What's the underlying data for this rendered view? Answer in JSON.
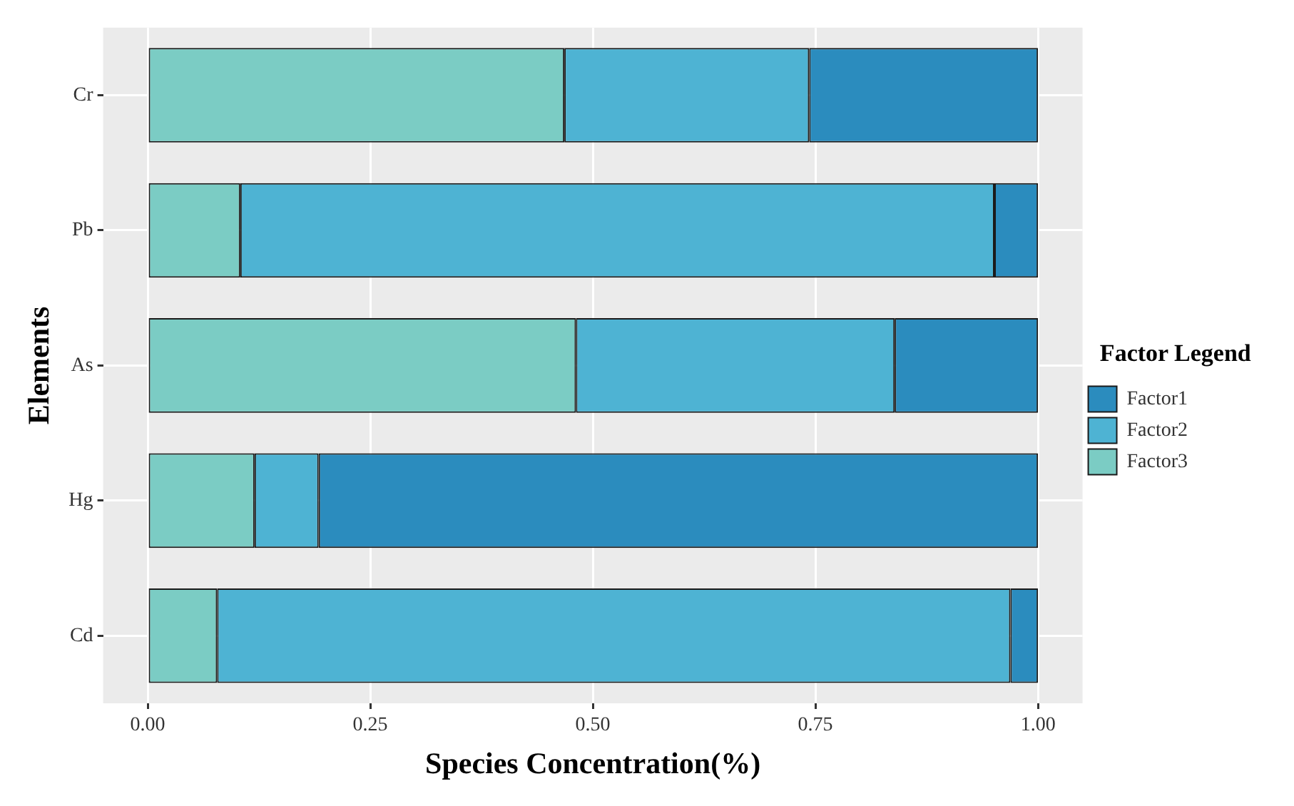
{
  "chart_data": {
    "type": "bar",
    "orientation": "horizontal",
    "stacked": true,
    "xlabel": "Species Concentration(%)",
    "ylabel": "Elements",
    "legend_title": "Factor Legend",
    "legend": "right",
    "grid": true,
    "categories": [
      "Cr",
      "Pb",
      "As",
      "Hg",
      "Cd"
    ],
    "xlim": [
      -0.05,
      1.05
    ],
    "xticks": [
      {
        "value": 0,
        "label": "0.00"
      },
      {
        "value": 0.25,
        "label": "0.25"
      },
      {
        "value": 0.5,
        "label": "0.50"
      },
      {
        "value": 0.75,
        "label": "0.75"
      },
      {
        "value": 1,
        "label": "1.00"
      }
    ],
    "series": [
      {
        "name": "Factor3",
        "color": "#7bccc4",
        "values": [
          0.468,
          0.104,
          0.481,
          0.12,
          0.078
        ]
      },
      {
        "name": "Factor2",
        "color": "#4eb3d3",
        "values": [
          0.275,
          0.847,
          0.358,
          0.072,
          0.891
        ]
      },
      {
        "name": "Factor1",
        "color": "#2b8cbe",
        "values": [
          0.257,
          0.049,
          0.161,
          0.808,
          0.031
        ]
      }
    ]
  }
}
